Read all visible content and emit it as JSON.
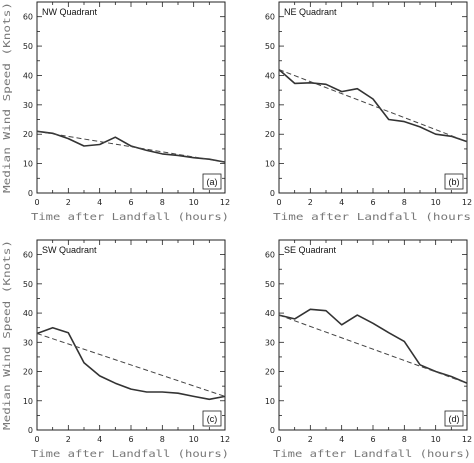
{
  "chart_data": [
    {
      "type": "line",
      "title": "NW Quadrant",
      "tag": "(a)",
      "xlabel": "Time after Landfall (hours)",
      "ylabel": "Median Wind Speed (Knots)",
      "xlim": [
        0,
        12
      ],
      "ylim": [
        0,
        65
      ],
      "xticks": [
        0,
        2,
        4,
        6,
        8,
        10,
        12
      ],
      "yticks": [
        0,
        10,
        20,
        30,
        40,
        50,
        60
      ],
      "series": [
        {
          "style": "solid",
          "x": [
            0,
            1,
            2,
            3,
            4,
            5,
            6,
            7,
            8,
            9,
            10,
            11,
            12
          ],
          "values": [
            21,
            20.3,
            18.5,
            16,
            16.5,
            19,
            16,
            14.5,
            13.3,
            12.8,
            12,
            11.5,
            10.5
          ]
        },
        {
          "style": "dashed",
          "x": [
            0,
            12
          ],
          "values": [
            21,
            10.5
          ]
        }
      ]
    },
    {
      "type": "line",
      "title": "NE Quadrant",
      "tag": "(b)",
      "xlabel": "Time after Landfall (hours",
      "ylabel": "",
      "xlim": [
        0,
        12
      ],
      "ylim": [
        0,
        65
      ],
      "xticks": [
        0,
        2,
        4,
        6,
        8,
        10,
        12
      ],
      "yticks": [
        0,
        10,
        20,
        30,
        40,
        50,
        60
      ],
      "series": [
        {
          "style": "solid",
          "x": [
            0,
            1,
            2,
            3,
            4,
            5,
            6,
            7,
            8,
            9,
            10,
            11,
            12
          ],
          "values": [
            42,
            37.3,
            37.5,
            37,
            34.5,
            35.5,
            32,
            25,
            24.3,
            22.5,
            20,
            19.3,
            17.5
          ]
        },
        {
          "style": "dashed",
          "x": [
            0,
            12
          ],
          "values": [
            42,
            17.5
          ]
        }
      ]
    },
    {
      "type": "line",
      "title": "SW Quadrant",
      "tag": "(c)",
      "xlabel": "Time after Landfall (hours)",
      "ylabel": "Median Wind Speed (Knots)",
      "xlim": [
        0,
        12
      ],
      "ylim": [
        0,
        65
      ],
      "xticks": [
        0,
        2,
        4,
        6,
        8,
        10,
        12
      ],
      "yticks": [
        0,
        10,
        20,
        30,
        40,
        50,
        60
      ],
      "series": [
        {
          "style": "solid",
          "x": [
            0,
            1,
            2,
            3,
            4,
            5,
            6,
            7,
            8,
            9,
            10,
            11,
            12
          ],
          "values": [
            33,
            35,
            33.3,
            23,
            18.5,
            16,
            14,
            13,
            13,
            12.6,
            11.5,
            10.5,
            11.5
          ]
        },
        {
          "style": "dashed",
          "x": [
            0,
            12
          ],
          "values": [
            33,
            11.5
          ]
        }
      ]
    },
    {
      "type": "line",
      "title": "SE Quadrant",
      "tag": "(d)",
      "xlabel": "Time after Landfall (hours)",
      "ylabel": "",
      "xlim": [
        0,
        12
      ],
      "ylim": [
        0,
        65
      ],
      "xticks": [
        0,
        2,
        4,
        6,
        8,
        10,
        12
      ],
      "yticks": [
        0,
        10,
        20,
        30,
        40,
        50,
        60
      ],
      "series": [
        {
          "style": "solid",
          "x": [
            0,
            1,
            2,
            3,
            4,
            5,
            6,
            7,
            8,
            9,
            10,
            11,
            12
          ],
          "values": [
            39.3,
            38,
            41.3,
            40.8,
            36,
            39.3,
            36.5,
            33.3,
            30.3,
            22.3,
            20,
            18.3,
            16
          ]
        },
        {
          "style": "dashed",
          "x": [
            0,
            12
          ],
          "values": [
            39.3,
            16
          ]
        }
      ]
    }
  ]
}
